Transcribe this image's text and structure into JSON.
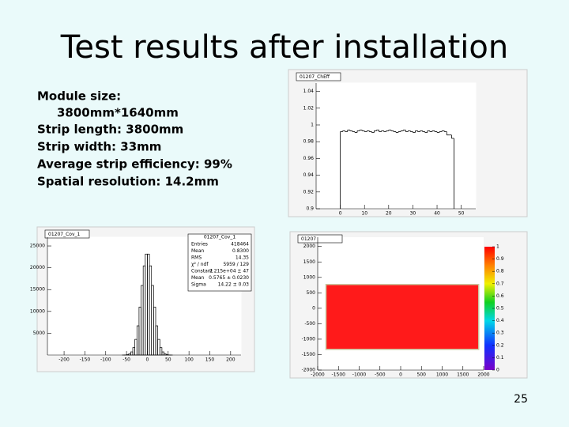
{
  "title": "Test results after installation",
  "bullets": [
    "Module size:",
    "3800mm*1640mm",
    "Strip length: 3800mm",
    "Strip width: 33mm",
    "Average strip efficiency: 99%",
    "Spatial resolution: 14.2mm"
  ],
  "page_number": "25",
  "plots": [
    {
      "type": "step",
      "title": "01207_ChEff",
      "x": [
        0,
        1,
        2,
        3,
        4,
        5,
        6,
        7,
        8,
        9,
        10,
        11,
        12,
        13,
        14,
        15,
        16,
        17,
        18,
        19,
        20,
        21,
        22,
        23,
        24,
        25,
        26,
        27,
        28,
        29,
        30,
        31,
        32,
        33,
        34,
        35,
        36,
        37,
        38,
        39,
        40,
        41,
        42,
        43,
        44,
        45,
        46
      ],
      "values": [
        0.992,
        0.993,
        0.992,
        0.994,
        0.993,
        0.992,
        0.991,
        0.993,
        0.994,
        0.993,
        0.992,
        0.993,
        0.992,
        0.991,
        0.993,
        0.994,
        0.992,
        0.993,
        0.992,
        0.993,
        0.994,
        0.993,
        0.992,
        0.991,
        0.992,
        0.993,
        0.994,
        0.992,
        0.993,
        0.992,
        0.991,
        0.993,
        0.992,
        0.993,
        0.992,
        0.991,
        0.993,
        0.992,
        0.993,
        0.992,
        0.991,
        0.992,
        0.993,
        0.992,
        0.988,
        0.988,
        0.984
      ],
      "xlim": [
        -10,
        56
      ],
      "ylim": [
        0.9,
        1.05
      ],
      "xticks": [
        0,
        10,
        20,
        30,
        40,
        50
      ],
      "yticks": [
        0.9,
        0.92,
        0.94,
        0.96,
        0.98,
        1,
        1.02,
        1.04
      ]
    },
    {
      "type": "histogram",
      "title": "01207_Cov_1",
      "bins": [
        -60,
        -55,
        -50,
        -45,
        -40,
        -35,
        -30,
        -25,
        -20,
        -15,
        -10,
        -5,
        0,
        5,
        10,
        15,
        20,
        25,
        30,
        35,
        40,
        45,
        50,
        55,
        60
      ],
      "values": [
        6,
        25,
        90,
        270,
        720,
        1710,
        3600,
        6700,
        11000,
        15950,
        20440,
        23140,
        23140,
        20440,
        15950,
        11000,
        6700,
        3600,
        1710,
        720,
        270,
        90,
        25,
        6
      ],
      "xlim": [
        -240,
        225
      ],
      "ylim": [
        0,
        27000
      ],
      "xticks": [
        -200,
        -150,
        -100,
        -50,
        0,
        50,
        100,
        150,
        200
      ],
      "yticks": [
        5000,
        10000,
        15000,
        20000,
        25000
      ],
      "stats_title": "01207_Cov_1",
      "stats": [
        [
          "Entries",
          "418464"
        ],
        [
          "Mean",
          "0.8300"
        ],
        [
          "RMS",
          "14.35"
        ],
        [
          "χ² / ndf",
          "5959 / 129"
        ],
        [
          "Constant",
          "2.215e+04 ± 47"
        ],
        [
          "Mean",
          "0.5765 ± 0.0230"
        ],
        [
          "Sigma",
          "14.22 ± 0.03"
        ]
      ]
    },
    {
      "type": "heatmap",
      "title": "01207",
      "region": {
        "x": [
          -1800,
          1880
        ],
        "y": [
          -1330,
          770
        ],
        "value": 0.99
      },
      "xlim": [
        -2000,
        2000
      ],
      "ylim": [
        -2000,
        2300
      ],
      "xticks": [
        -2000,
        -1500,
        -1000,
        -500,
        0,
        500,
        1000,
        1500,
        2000
      ],
      "yticks": [
        -2000,
        -1500,
        -1000,
        -500,
        0,
        500,
        1000,
        1500,
        2000
      ],
      "zlim": [
        0,
        1
      ],
      "zticks": [
        0,
        0.1,
        0.2,
        0.3,
        0.4,
        0.5,
        0.6,
        0.7,
        0.8,
        0.9,
        1
      ]
    }
  ]
}
